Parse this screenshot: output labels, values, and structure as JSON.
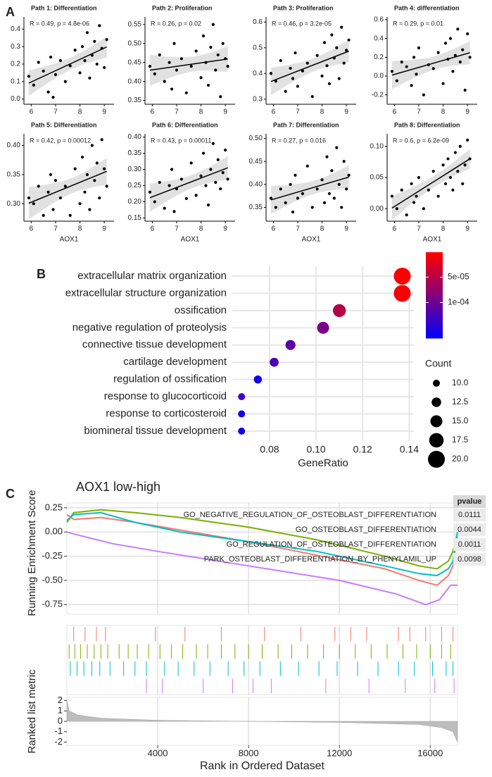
{
  "panel_labels": [
    "A",
    "B",
    "C"
  ],
  "chart_data": [
    {
      "type": "scatter",
      "title": "Path 1: Differentiation",
      "annotation": "R = 0.49, p = 4.8e-06",
      "x": [
        5.9,
        6.1,
        6.3,
        6.5,
        6.7,
        6.8,
        6.9,
        7.0,
        7.2,
        7.4,
        7.6,
        7.8,
        8.0,
        8.1,
        8.2,
        8.3,
        8.4,
        8.5,
        8.6,
        8.7,
        8.8,
        8.9,
        9.0,
        9.1
      ],
      "y": [
        0.13,
        0.08,
        0.21,
        0.16,
        0.04,
        0.24,
        0.01,
        0.14,
        0.22,
        0.1,
        0.19,
        0.28,
        0.15,
        0.3,
        0.22,
        0.38,
        0.12,
        0.25,
        0.33,
        0.2,
        0.42,
        0.29,
        0.18,
        0.34
      ],
      "xlim": [
        5.7,
        9.4
      ],
      "xticks": [
        6,
        7,
        8,
        9
      ],
      "ylim": [
        -0.03,
        0.47
      ],
      "yticks": [
        {
          "value": 0,
          "label": "0.0"
        },
        0.1,
        0.2,
        0.3,
        0.4
      ]
    },
    {
      "type": "scatter",
      "title": "Path 2: Proliferation",
      "annotation": "R = 0.26, p = 0.02",
      "x": [
        5.9,
        6.1,
        6.3,
        6.5,
        6.7,
        6.8,
        6.9,
        7.0,
        7.2,
        7.4,
        7.6,
        7.8,
        8.0,
        8.1,
        8.2,
        8.3,
        8.4,
        8.5,
        8.6,
        8.7,
        8.8,
        8.9,
        9.0,
        9.1
      ],
      "y": [
        0.44,
        0.42,
        0.47,
        0.4,
        0.45,
        0.38,
        0.5,
        0.43,
        0.46,
        0.37,
        0.44,
        0.48,
        0.41,
        0.52,
        0.45,
        0.39,
        0.49,
        0.55,
        0.43,
        0.47,
        0.36,
        0.5,
        0.46,
        0.44
      ],
      "xlim": [
        5.7,
        9.4
      ],
      "xticks": [
        6,
        7,
        8,
        9
      ],
      "ylim": [
        0.34,
        0.57
      ],
      "yticks": [
        0.35,
        {
          "value": 0.4,
          "label": "0.40"
        },
        0.45,
        {
          "value": 0.5,
          "label": "0.50"
        },
        0.55
      ]
    },
    {
      "type": "scatter",
      "title": "Path 3: Proliferation",
      "annotation": "R = 0.46, p = 3.2e-05",
      "x": [
        5.9,
        6.1,
        6.3,
        6.5,
        6.7,
        6.8,
        6.9,
        7.0,
        7.2,
        7.4,
        7.6,
        7.8,
        8.0,
        8.1,
        8.2,
        8.3,
        8.4,
        8.5,
        8.6,
        8.7,
        8.8,
        8.9,
        9.0,
        9.1
      ],
      "y": [
        0.4,
        0.37,
        0.45,
        0.33,
        0.42,
        0.38,
        0.48,
        0.35,
        0.41,
        0.44,
        0.31,
        0.47,
        0.39,
        0.52,
        0.43,
        0.36,
        0.55,
        0.46,
        0.5,
        0.38,
        0.58,
        0.44,
        0.49,
        0.53
      ],
      "xlim": [
        5.7,
        9.4
      ],
      "xticks": [
        6,
        7,
        8,
        9
      ],
      "ylim": [
        0.28,
        0.62
      ],
      "yticks": [
        0.3,
        0.4,
        0.5,
        0.6
      ]
    },
    {
      "type": "scatter",
      "title": "Path 4: differentiation",
      "annotation": "R = 0.29, p = 0.01",
      "x": [
        5.9,
        6.1,
        6.3,
        6.5,
        6.7,
        6.8,
        6.9,
        7.0,
        7.2,
        7.4,
        7.6,
        7.8,
        8.0,
        8.1,
        8.2,
        8.3,
        8.4,
        8.5,
        8.6,
        8.7,
        8.8,
        8.9,
        9.0,
        9.1
      ],
      "y": [
        0.05,
        -0.05,
        0.15,
        0.1,
        -0.1,
        0.2,
        0.02,
        0.3,
        -0.2,
        0.12,
        0.08,
        0.25,
        -0.08,
        0.35,
        0.18,
        0.4,
        0.05,
        0.22,
        0.5,
        0.15,
        0.28,
        -0.15,
        0.45,
        0.2
      ],
      "xlim": [
        5.7,
        9.4
      ],
      "xticks": [
        6,
        7,
        8,
        9
      ],
      "ylim": [
        -0.3,
        0.63
      ],
      "yticks": [
        -0.2,
        {
          "value": 0,
          "label": "0.0"
        },
        0.2,
        0.4,
        0.6
      ]
    },
    {
      "type": "scatter",
      "title": "Path 5: Differentiation",
      "annotation": "R = 0.42, p = 0.00012",
      "xlabel": "AOX1",
      "x": [
        5.9,
        6.1,
        6.3,
        6.5,
        6.7,
        6.8,
        6.9,
        7.0,
        7.2,
        7.4,
        7.6,
        7.8,
        8.0,
        8.1,
        8.2,
        8.3,
        8.4,
        8.5,
        8.6,
        8.7,
        8.8,
        8.9,
        9.0,
        9.1
      ],
      "y": [
        0.31,
        0.3,
        0.33,
        0.28,
        0.32,
        0.35,
        0.29,
        0.34,
        0.31,
        0.33,
        0.28,
        0.36,
        0.3,
        0.38,
        0.32,
        0.35,
        0.29,
        0.4,
        0.34,
        0.37,
        0.31,
        0.41,
        0.36,
        0.33
      ],
      "xlim": [
        5.7,
        9.4
      ],
      "xticks": [
        6,
        7,
        8,
        9
      ],
      "ylim": [
        0.27,
        0.42
      ],
      "yticks": [
        {
          "value": 0.3,
          "label": "0.30"
        },
        0.35,
        {
          "value": 0.4,
          "label": "0.40"
        }
      ]
    },
    {
      "type": "scatter",
      "title": "Path 6: Differentiation",
      "annotation": "R = 0.43, p = 0.00011",
      "xlabel": "AOX1",
      "x": [
        5.9,
        6.1,
        6.3,
        6.5,
        6.7,
        6.8,
        6.9,
        7.0,
        7.2,
        7.4,
        7.6,
        7.8,
        8.0,
        8.1,
        8.2,
        8.3,
        8.4,
        8.5,
        8.6,
        8.7,
        8.8,
        8.9,
        9.0,
        9.1
      ],
      "y": [
        0.23,
        0.2,
        0.26,
        0.18,
        0.25,
        0.3,
        0.17,
        0.24,
        0.27,
        0.21,
        0.32,
        0.22,
        0.28,
        0.35,
        0.25,
        0.19,
        0.3,
        0.38,
        0.26,
        0.33,
        0.24,
        0.29,
        0.36,
        0.27
      ],
      "xlim": [
        5.7,
        9.4
      ],
      "xticks": [
        6,
        7,
        8,
        9
      ],
      "ylim": [
        0.14,
        0.41
      ],
      "yticks": [
        0.15,
        {
          "value": 0.2,
          "label": "0.20"
        },
        0.25,
        {
          "value": 0.3,
          "label": "0.30"
        },
        0.35,
        {
          "value": 0.4,
          "label": "0.40"
        }
      ]
    },
    {
      "type": "scatter",
      "title": "Path 7: Differentiation",
      "annotation": "R = 0.27, p = 0.016",
      "xlabel": "AOX1",
      "x": [
        5.9,
        6.1,
        6.3,
        6.5,
        6.7,
        6.8,
        6.9,
        7.0,
        7.2,
        7.4,
        7.6,
        7.8,
        8.0,
        8.1,
        8.2,
        8.3,
        8.4,
        8.5,
        8.6,
        8.7,
        8.8,
        8.9,
        9.0,
        9.1
      ],
      "y": [
        0.37,
        0.35,
        0.39,
        0.36,
        0.4,
        0.34,
        0.42,
        0.37,
        0.38,
        0.44,
        0.35,
        0.39,
        0.41,
        0.36,
        0.46,
        0.38,
        0.43,
        0.37,
        0.48,
        0.4,
        0.35,
        0.45,
        0.39,
        0.42
      ],
      "xlim": [
        5.7,
        9.4
      ],
      "xticks": [
        6,
        7,
        8,
        9
      ],
      "ylim": [
        0.32,
        0.51
      ],
      "yticks": [
        0.35,
        {
          "value": 0.4,
          "label": "0.40"
        },
        0.45,
        {
          "value": 0.5,
          "label": "0.50"
        }
      ]
    },
    {
      "type": "scatter",
      "title": "Path 8: Differentiation",
      "annotation": "R = 0.6, p = 6.2e-09",
      "xlabel": "AOX1",
      "x": [
        5.9,
        6.1,
        6.3,
        6.5,
        6.7,
        6.8,
        6.9,
        7.0,
        7.2,
        7.4,
        7.6,
        7.8,
        8.0,
        8.1,
        8.2,
        8.3,
        8.4,
        8.5,
        8.6,
        8.7,
        8.8,
        8.9,
        9.0,
        9.1
      ],
      "y": [
        0.02,
        0.0,
        0.03,
        -0.01,
        0.04,
        0.01,
        0.02,
        0.05,
        0.0,
        0.03,
        0.06,
        0.02,
        0.07,
        0.04,
        0.08,
        0.05,
        0.03,
        0.09,
        0.06,
        0.1,
        0.04,
        0.07,
        0.11,
        0.08
      ],
      "xlim": [
        5.7,
        9.4
      ],
      "xticks": [
        6,
        7,
        8,
        9
      ],
      "ylim": [
        -0.02,
        0.12
      ],
      "yticks": [
        {
          "value": 0,
          "label": "0.00"
        },
        0.05,
        {
          "value": 0.1,
          "label": "0.10"
        }
      ]
    },
    {
      "type": "dot",
      "xlabel": "GeneRatio",
      "categories": [
        "extracellular matrix organization",
        "extracellular structure organization",
        "ossification",
        "negative regulation of proteolysis",
        "connective tissue development",
        "cartilage development",
        "regulation of ossification",
        "response to glucocorticoid",
        "response to corticosteroid",
        "biomineral tissue development"
      ],
      "values": [
        0.137,
        0.137,
        0.11,
        0.103,
        0.089,
        0.082,
        0.075,
        0.068,
        0.068,
        0.068
      ],
      "counts": [
        20,
        20,
        16,
        15,
        13,
        12,
        11,
        10,
        10,
        10
      ],
      "color_values": [
        3e-06,
        4e-06,
        5e-05,
        9e-05,
        0.00011,
        0.00012,
        0.00016,
        0.00013,
        0.00016,
        0.00016
      ],
      "colors": [
        "#ff0000",
        "#0000ff"
      ],
      "xlim": [
        0.064,
        0.142
      ],
      "xticks": [
        0.08,
        {
          "value": 0.1,
          "label": "0.10"
        },
        0.12,
        0.14
      ],
      "clim": [
        1e-06,
        0.00017
      ],
      "cticks": [
        {
          "value": 5e-05,
          "label": "5e-05"
        },
        {
          "value": 0.0001,
          "label": "1e-04"
        }
      ],
      "size_title": "Count",
      "size_lim": [
        10,
        20
      ],
      "size_ticks": [
        {
          "value": 10,
          "label": "10.0"
        },
        12.5,
        {
          "value": 15,
          "label": "15.0"
        },
        17.5,
        {
          "value": 20,
          "label": "20.0"
        }
      ],
      "grid": true
    },
    {
      "type": "gsea",
      "title": "AOX1  low-high",
      "ylabel": "Running Enrichment Score",
      "y2label": "Ranked list metric",
      "xlabel": "Rank in Ordered Dataset",
      "table_header": "pvalue",
      "xlim": [
        0,
        17200
      ],
      "xticks": [
        4000,
        8000,
        12000,
        16000
      ],
      "ylim": [
        -0.85,
        0.3
      ],
      "yticks": [
        0.25,
        {
          "value": 0,
          "label": "0.00"
        },
        -0.25,
        {
          "value": -0.5,
          "label": "-0.50"
        },
        {
          "value": -0.75,
          "label": "-0.75"
        }
      ],
      "y2lim": [
        -2.3,
        2.3
      ],
      "y2ticks": [
        2,
        1,
        0,
        -1,
        -2
      ],
      "series": [
        {
          "name": "GO_NEGATIVE_REGULATION_OF_OSTEOBLAST_DIFFERENTIATION",
          "color": "#f8766d",
          "pvalue": 0.0111,
          "x": [
            0,
            300,
            1500,
            3000,
            5000,
            8000,
            11000,
            14000,
            15500,
            16300,
            16800,
            17000,
            17200
          ],
          "values": [
            0.18,
            0.13,
            0.15,
            0.1,
            0.02,
            -0.1,
            -0.24,
            -0.38,
            -0.5,
            -0.55,
            -0.45,
            -0.35,
            0.0
          ],
          "hits": [
            300,
            800,
            1300,
            1700,
            3900,
            5200,
            6800,
            8700,
            10300,
            11800,
            12500,
            13200,
            14600,
            15100,
            15800,
            16500,
            17000
          ]
        },
        {
          "name": "GO_OSTEOBLAST_DIFFERENTIATION",
          "color": "#7cae00",
          "pvalue": 0.0044,
          "x": [
            0,
            300,
            1500,
            3000,
            5000,
            8000,
            11000,
            14000,
            15500,
            16300,
            16800,
            17000,
            17200
          ],
          "values": [
            0.1,
            0.2,
            0.23,
            0.2,
            0.15,
            0.05,
            -0.08,
            -0.25,
            -0.35,
            -0.38,
            -0.3,
            -0.2,
            0.0
          ],
          "hits": [
            100,
            350,
            600,
            900,
            1200,
            1500,
            1800,
            2300,
            2700,
            3100,
            3600,
            4100,
            4600,
            5100,
            5700,
            6200,
            6800,
            7400,
            8000,
            8600,
            9300,
            9900,
            10600,
            11300,
            12000,
            12700,
            13400,
            14100,
            14800,
            15400,
            16000,
            16500,
            16900
          ]
        },
        {
          "name": "GO_REGULATION_OF_OSTEOBLAST_DIFFERENTIATION",
          "color": "#00bfc4",
          "pvalue": 0.0011,
          "x": [
            0,
            300,
            1500,
            3000,
            5000,
            8000,
            11000,
            14000,
            15500,
            16300,
            16800,
            17000,
            17200
          ],
          "values": [
            0.12,
            0.18,
            0.2,
            0.1,
            0.0,
            -0.1,
            -0.2,
            -0.35,
            -0.43,
            -0.45,
            -0.38,
            -0.3,
            0.0
          ],
          "hits": [
            150,
            450,
            750,
            1100,
            1450,
            1900,
            2500,
            3000,
            3500,
            4300,
            4900,
            5600,
            6300,
            7100,
            7800,
            8500,
            9400,
            10200,
            11100,
            11900,
            12800,
            13700,
            14600,
            15300,
            16100,
            16700,
            17000
          ]
        },
        {
          "name": "PARK_OSTEOBLAST_DIFFERENTIATION_BY_PHENYLAMIL_UP",
          "color": "#c77cff",
          "pvalue": 0.0098,
          "x": [
            0,
            300,
            2000,
            4000,
            8000,
            12000,
            14500,
            15800,
            16400,
            16900,
            17200
          ],
          "values": [
            0.0,
            -0.02,
            -0.12,
            -0.2,
            -0.35,
            -0.5,
            -0.64,
            -0.75,
            -0.7,
            -0.55,
            -0.55
          ],
          "hits": [
            3500,
            4200,
            6000,
            7300,
            8200,
            9000,
            11400,
            13300,
            14900,
            16200,
            17050
          ]
        }
      ],
      "metric": {
        "x": [
          0,
          100,
          500,
          1500,
          4000,
          8000,
          12000,
          15500,
          16500,
          17000,
          17200
        ],
        "values": [
          2,
          1,
          0.6,
          0.3,
          0.1,
          0,
          -0.1,
          -0.3,
          -0.6,
          -1,
          -2
        ]
      }
    }
  ]
}
